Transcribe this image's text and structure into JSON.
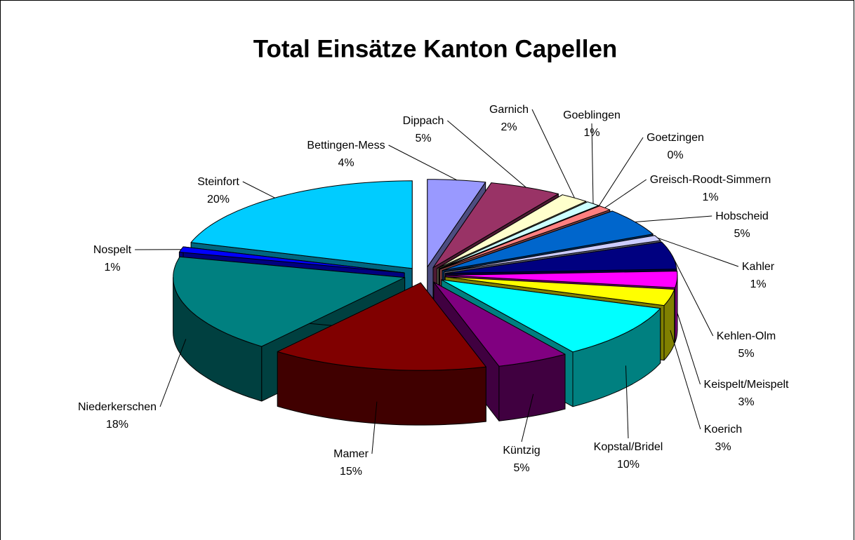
{
  "chart_data": {
    "type": "pie",
    "title": "Total Einsätze Kanton Capellen",
    "categories": [
      "Bettingen-Mess",
      "Dippach",
      "Garnich",
      "Goeblingen",
      "Goetzingen",
      "Greisch-Roodt-Simmern",
      "Hobscheid",
      "Kahler",
      "Kehlen-Olm",
      "Keispelt/Meispelt",
      "Koerich",
      "Kopstal/Bridel",
      "Küntzig",
      "Mamer",
      "Niederkerschen",
      "Nospelt",
      "Steinfort"
    ],
    "values": [
      4,
      5,
      2,
      1,
      0,
      1,
      5,
      1,
      5,
      3,
      3,
      10,
      5,
      15,
      18,
      1,
      20
    ],
    "value_labels": [
      "4%",
      "5%",
      "2%",
      "1%",
      "0%",
      "1%",
      "5%",
      "1%",
      "5%",
      "3%",
      "3%",
      "10%",
      "5%",
      "15%",
      "18%",
      "1%",
      "20%"
    ],
    "colors": [
      "#9999ff",
      "#993366",
      "#ffffcc",
      "#ccffff",
      "#660066",
      "#ff8080",
      "#0066cc",
      "#ccccff",
      "#000080",
      "#ff00ff",
      "#ffff00",
      "#00ffff",
      "#800080",
      "#800000",
      "#008080",
      "#0000ff",
      "#00ccff"
    ]
  }
}
